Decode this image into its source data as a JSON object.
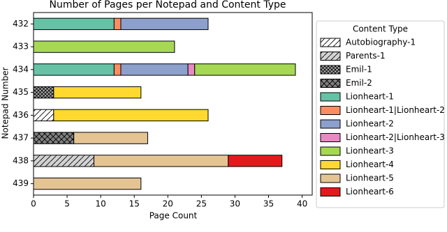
{
  "chart_data": {
    "type": "stacked-barh",
    "title": "Number of Pages per Notepad and Content Type",
    "x_label": "Page Count",
    "y_label": "Notepad Number",
    "legend_title": "Content Type",
    "legend_position": "right",
    "categories": [
      "432",
      "433",
      "434",
      "435",
      "436",
      "437",
      "438",
      "439"
    ],
    "xlim": [
      0,
      41.5
    ],
    "xticks": [
      0,
      5,
      10,
      15,
      20,
      25,
      30,
      35,
      40
    ],
    "series": [
      {
        "name": "Autobiography-1",
        "color": "#ffffff",
        "hatch": "//",
        "values": [
          null,
          null,
          null,
          null,
          3,
          null,
          null,
          null
        ]
      },
      {
        "name": "Parents-1",
        "color": "#d3d3d3",
        "hatch": "//",
        "values": [
          null,
          null,
          null,
          null,
          null,
          null,
          9,
          null
        ]
      },
      {
        "name": "Emil-1",
        "color": "#a9a9a9",
        "hatch": "xx",
        "values": [
          null,
          null,
          null,
          3,
          null,
          null,
          null,
          null
        ]
      },
      {
        "name": "Emil-2",
        "color": "#808080",
        "hatch": "x",
        "values": [
          null,
          null,
          null,
          null,
          null,
          6,
          null,
          null
        ]
      },
      {
        "name": "Lionheart-1",
        "color": "#66c2a5",
        "values": [
          12,
          null,
          12,
          null,
          null,
          null,
          null,
          null
        ]
      },
      {
        "name": "Lionheart-1|Lionheart-2",
        "color": "#fc8d62",
        "values": [
          1,
          null,
          1,
          null,
          null,
          null,
          null,
          null
        ]
      },
      {
        "name": "Lionheart-2",
        "color": "#8da0cb",
        "values": [
          13,
          null,
          10,
          null,
          null,
          null,
          null,
          null
        ]
      },
      {
        "name": "Lionheart-2|Lionheart-3",
        "color": "#e78ac3",
        "values": [
          null,
          null,
          1,
          null,
          null,
          null,
          null,
          null
        ]
      },
      {
        "name": "Lionheart-3",
        "color": "#a6d854",
        "values": [
          null,
          21,
          15,
          null,
          null,
          null,
          null,
          null
        ]
      },
      {
        "name": "Lionheart-4",
        "color": "#ffd92f",
        "values": [
          null,
          null,
          null,
          13,
          23,
          null,
          null,
          null
        ]
      },
      {
        "name": "Lionheart-5",
        "color": "#e5c494",
        "values": [
          null,
          null,
          null,
          null,
          null,
          11,
          20,
          16
        ]
      },
      {
        "name": "Lionheart-6",
        "color": "#e31a1c",
        "values": [
          null,
          null,
          null,
          null,
          null,
          null,
          8,
          null
        ]
      }
    ]
  }
}
